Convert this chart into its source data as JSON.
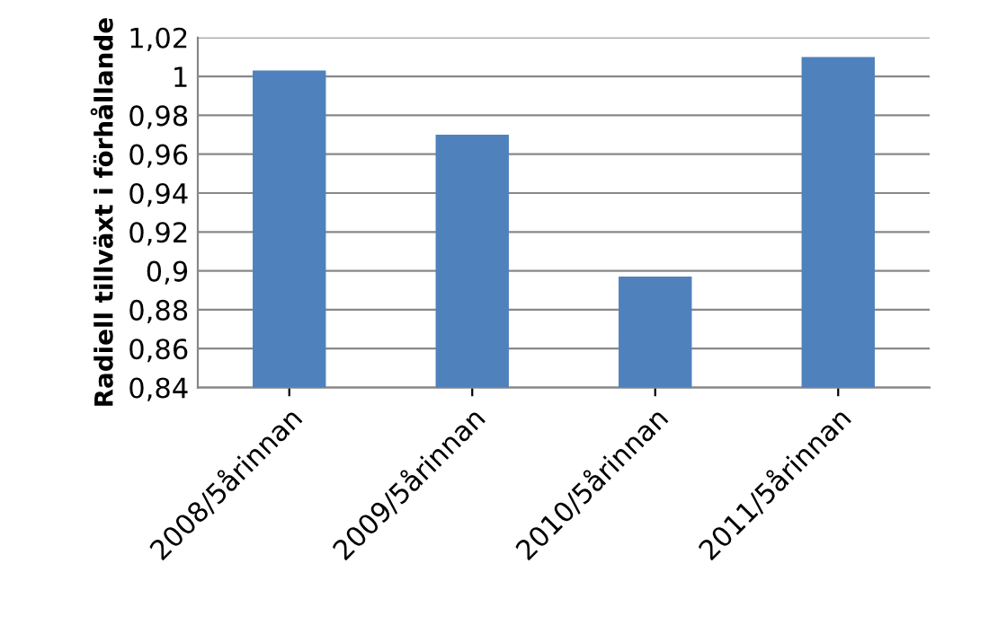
{
  "chart_data": {
    "type": "bar",
    "ylabel": "Radiell tillväxt i förhållande",
    "categories": [
      "2008/5årinnan",
      "2009/5årinnan",
      "2010/5årinnan",
      "2011/5årinnan"
    ],
    "values": [
      1.003,
      0.97,
      0.897,
      1.01
    ],
    "color": "#4f81bd",
    "ylim": [
      0.84,
      1.02
    ],
    "yticks": [
      {
        "value": 0.84,
        "label": "0,84"
      },
      {
        "value": 0.86,
        "label": "0,86"
      },
      {
        "value": 0.88,
        "label": "0,88"
      },
      {
        "value": 0.9,
        "label": "0,9"
      },
      {
        "value": 0.92,
        "label": "0,92"
      },
      {
        "value": 0.94,
        "label": "0,94"
      },
      {
        "value": 0.96,
        "label": "0,96"
      },
      {
        "value": 0.98,
        "label": "0,98"
      },
      {
        "value": 1,
        "label": "1"
      },
      {
        "value": 1.02,
        "label": "1,02"
      }
    ],
    "grid": "y",
    "legend": false
  }
}
